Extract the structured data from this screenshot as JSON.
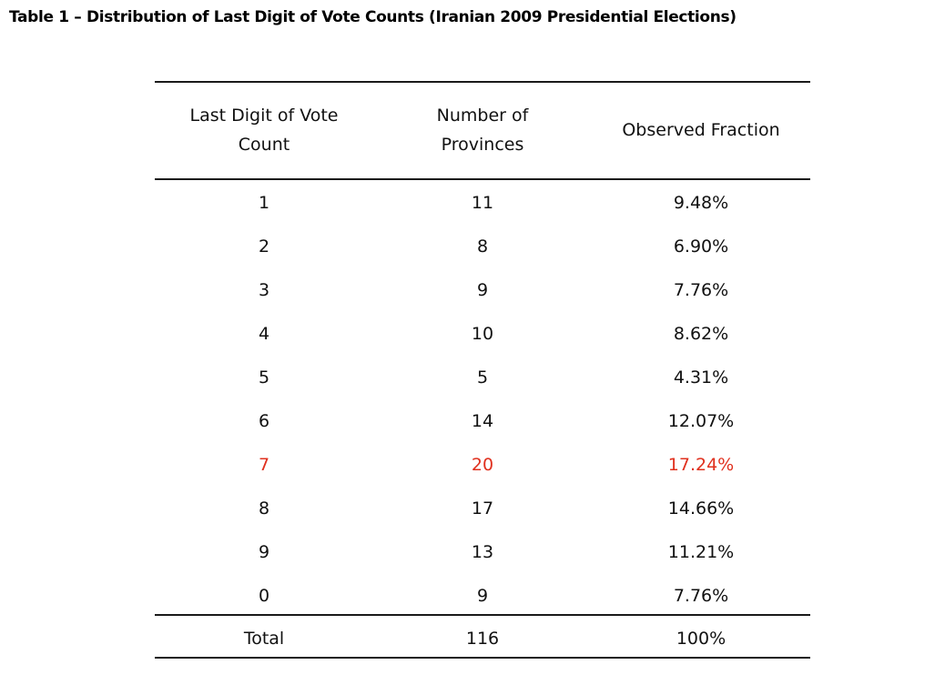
{
  "title": "Table 1 – Distribution of Last Digit of Vote Counts (Iranian 2009 Presidential Elections)",
  "headers": {
    "digit": "Last Digit of Vote\nCount",
    "provinces": "Number of\nProvinces",
    "fraction": "Observed Fraction"
  },
  "rows": [
    {
      "digit": "1",
      "provinces": "11",
      "fraction": "9.48%"
    },
    {
      "digit": "2",
      "provinces": "8",
      "fraction": "6.90%"
    },
    {
      "digit": "3",
      "provinces": "9",
      "fraction": "7.76%"
    },
    {
      "digit": "4",
      "provinces": "10",
      "fraction": "8.62%"
    },
    {
      "digit": "5",
      "provinces": "5",
      "fraction": "4.31%"
    },
    {
      "digit": "6",
      "provinces": "14",
      "fraction": "12.07%"
    },
    {
      "digit": "7",
      "provinces": "20",
      "fraction": "17.24%"
    },
    {
      "digit": "8",
      "provinces": "17",
      "fraction": "14.66%"
    },
    {
      "digit": "9",
      "provinces": "13",
      "fraction": "11.21%"
    },
    {
      "digit": "0",
      "provinces": "9",
      "fraction": "7.76%"
    }
  ],
  "total": {
    "digit": "Total",
    "provinces": "116",
    "fraction": "100%"
  },
  "colors": {
    "text": "#111111",
    "highlight": "#e0301e",
    "rule": "#1a1a1a"
  }
}
